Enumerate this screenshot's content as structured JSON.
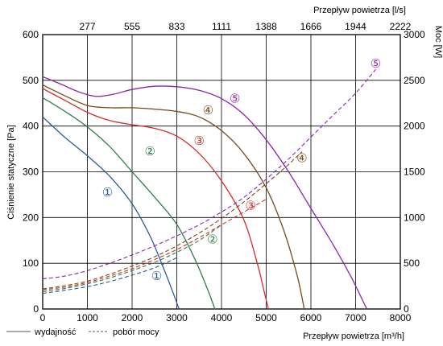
{
  "chart_data": {
    "type": "line",
    "y_left_label": "Ciśnienie statyczne [Pa]",
    "y_right_label": "Moc [W]",
    "x_bottom_label": "Przepływ powietrza [m³/h]",
    "x_top_label": "Przepływ powietrza [l/s]",
    "x_ticks": [
      "0",
      "1000",
      "2000",
      "3000",
      "4000",
      "5000",
      "6000",
      "7000",
      "8000"
    ],
    "x_top_ticks": [
      "277",
      "555",
      "833",
      "1111",
      "1388",
      "1666",
      "1944",
      "2222"
    ],
    "y_left_ticks": [
      "0",
      "100",
      "200",
      "300",
      "400",
      "500",
      "600"
    ],
    "y_right_ticks": [
      "0",
      "500",
      "1000",
      "1500",
      "2000",
      "2500",
      "3000"
    ],
    "xlim": [
      0,
      8000
    ],
    "ylim_left": [
      0,
      600
    ],
    "ylim_right": [
      0,
      3000
    ],
    "grid": true,
    "legend": {
      "solid": "wydajność",
      "dashed": "pobór mocy"
    },
    "series": [
      {
        "label": "①",
        "color": "#2c5aa0",
        "pressure": [
          [
            0,
            420
          ],
          [
            500,
            375
          ],
          [
            1000,
            335
          ],
          [
            1500,
            290
          ],
          [
            2000,
            230
          ],
          [
            2400,
            160
          ],
          [
            2700,
            90
          ],
          [
            2900,
            40
          ],
          [
            3050,
            0
          ]
        ],
        "power": [
          [
            0,
            170
          ],
          [
            500,
            205
          ],
          [
            1000,
            245
          ],
          [
            1500,
            300
          ],
          [
            2000,
            370
          ],
          [
            2500,
            450
          ],
          [
            3000,
            560
          ]
        ],
        "pressure_label_at": [
          1450,
          255
        ],
        "power_label_at": [
          2550,
          72
        ]
      },
      {
        "label": "②",
        "color": "#2e7d4a",
        "pressure": [
          [
            0,
            462
          ],
          [
            500,
            432
          ],
          [
            1000,
            398
          ],
          [
            1500,
            355
          ],
          [
            2000,
            300
          ],
          [
            2500,
            245
          ],
          [
            3000,
            185
          ],
          [
            3400,
            110
          ],
          [
            3700,
            40
          ],
          [
            3850,
            0
          ]
        ],
        "power": [
          [
            0,
            190
          ],
          [
            500,
            225
          ],
          [
            1000,
            275
          ],
          [
            1500,
            340
          ],
          [
            2000,
            420
          ],
          [
            2500,
            510
          ],
          [
            3000,
            620
          ],
          [
            3500,
            750
          ],
          [
            4000,
            920
          ]
        ],
        "pressure_label_at": [
          2400,
          345
        ],
        "power_label_at": [
          3800,
          152
        ]
      },
      {
        "label": "③",
        "color": "#d42b2b",
        "pressure": [
          [
            0,
            482
          ],
          [
            500,
            456
          ],
          [
            1000,
            430
          ],
          [
            1500,
            412
          ],
          [
            2000,
            403
          ],
          [
            2500,
            395
          ],
          [
            3000,
            378
          ],
          [
            3500,
            340
          ],
          [
            4000,
            280
          ],
          [
            4500,
            195
          ],
          [
            4800,
            100
          ],
          [
            4950,
            40
          ],
          [
            5050,
            0
          ]
        ],
        "power": [
          [
            0,
            210
          ],
          [
            500,
            240
          ],
          [
            1000,
            290
          ],
          [
            1500,
            360
          ],
          [
            2000,
            440
          ],
          [
            2500,
            540
          ],
          [
            3000,
            650
          ],
          [
            3500,
            780
          ],
          [
            4000,
            920
          ],
          [
            4500,
            1060
          ],
          [
            5000,
            1200
          ]
        ],
        "pressure_label_at": [
          3500,
          368
        ],
        "power_label_at": [
          4650,
          226
        ]
      },
      {
        "label": "④",
        "color": "#7a4a1a",
        "pressure": [
          [
            0,
            490
          ],
          [
            500,
            466
          ],
          [
            1000,
            445
          ],
          [
            1500,
            440
          ],
          [
            2000,
            440
          ],
          [
            2500,
            437
          ],
          [
            3000,
            432
          ],
          [
            3500,
            420
          ],
          [
            4000,
            390
          ],
          [
            4500,
            340
          ],
          [
            5000,
            265
          ],
          [
            5400,
            170
          ],
          [
            5700,
            70
          ],
          [
            5850,
            0
          ]
        ],
        "power": [
          [
            0,
            220
          ],
          [
            500,
            255
          ],
          [
            1000,
            305
          ],
          [
            1500,
            380
          ],
          [
            2000,
            470
          ],
          [
            2500,
            570
          ],
          [
            3000,
            690
          ],
          [
            3500,
            830
          ],
          [
            4000,
            990
          ],
          [
            4500,
            1170
          ],
          [
            5000,
            1370
          ],
          [
            5500,
            1580
          ],
          [
            5800,
            1720
          ]
        ],
        "pressure_label_at": [
          3700,
          435
        ],
        "power_label_at": [
          5800,
          330
        ]
      },
      {
        "label": "⑤",
        "color": "#8e24aa",
        "pressure": [
          [
            0,
            508
          ],
          [
            400,
            492
          ],
          [
            800,
            475
          ],
          [
            1200,
            465
          ],
          [
            1600,
            470
          ],
          [
            2000,
            480
          ],
          [
            2500,
            487
          ],
          [
            3000,
            486
          ],
          [
            3500,
            478
          ],
          [
            4000,
            460
          ],
          [
            4500,
            425
          ],
          [
            5000,
            370
          ],
          [
            5500,
            300
          ],
          [
            6000,
            220
          ],
          [
            6500,
            140
          ],
          [
            6900,
            70
          ],
          [
            7250,
            0
          ]
        ],
        "power": [
          [
            0,
            330
          ],
          [
            500,
            360
          ],
          [
            1000,
            420
          ],
          [
            1500,
            500
          ],
          [
            2000,
            590
          ],
          [
            2500,
            690
          ],
          [
            3000,
            800
          ],
          [
            3500,
            920
          ],
          [
            4000,
            1060
          ],
          [
            4500,
            1220
          ],
          [
            5000,
            1420
          ],
          [
            5500,
            1640
          ],
          [
            6000,
            1880
          ],
          [
            6500,
            2120
          ],
          [
            7000,
            2360
          ],
          [
            7450,
            2620
          ]
        ],
        "pressure_label_at": [
          4300,
          460
        ],
        "power_label_at": [
          7450,
          537
        ]
      }
    ]
  }
}
